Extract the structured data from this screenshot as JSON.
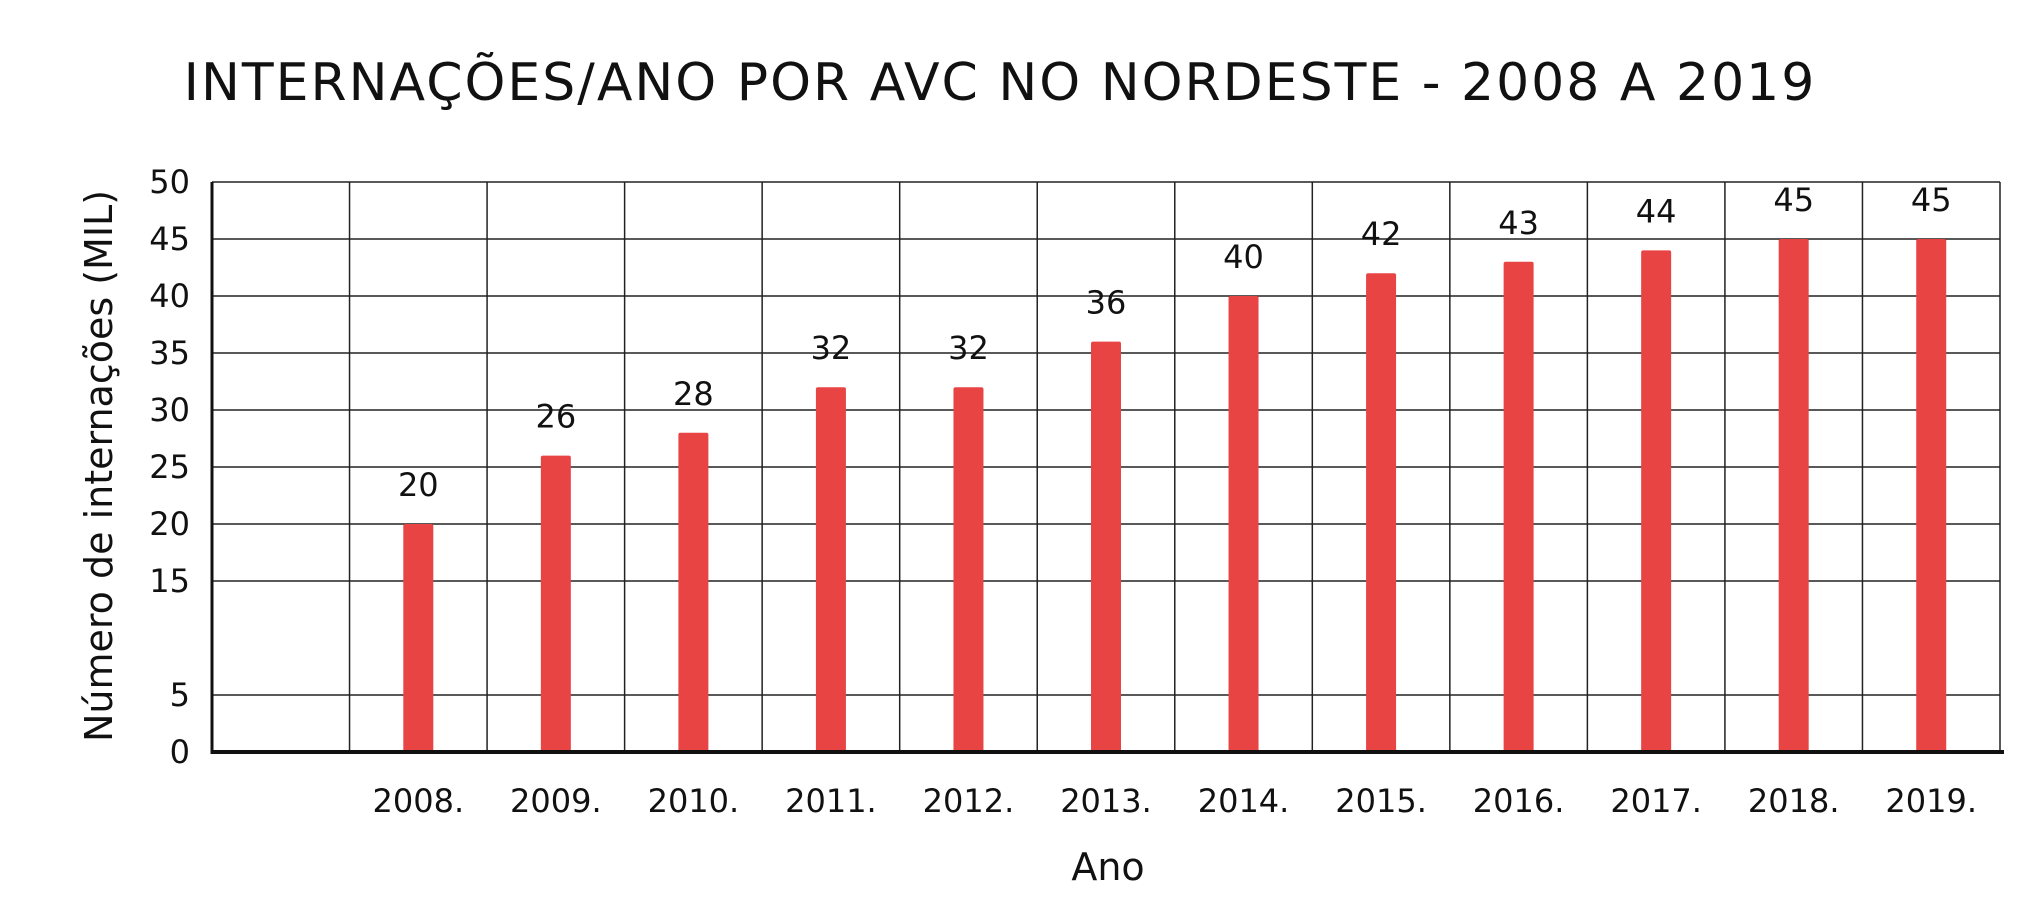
{
  "chart_data": {
    "type": "bar",
    "title": "INTERNAÇÕES/ANO POR AVC NO NORDESTE - 2008 A 2019",
    "xlabel": "Ano",
    "ylabel": "Número de internações (MIL)",
    "categories": [
      "",
      "2008.",
      "2009.",
      "2010.",
      "2011.",
      "2012.",
      "2013.",
      "2014.",
      "2015.",
      "2016.",
      "2017.",
      "2018.",
      "2019."
    ],
    "values": [
      null,
      20,
      26,
      28,
      32,
      32,
      36,
      40,
      42,
      43,
      44,
      45,
      45
    ],
    "data_labels": [
      "",
      "20",
      "26",
      "28",
      "32",
      "32",
      "36",
      "40",
      "42",
      "43",
      "44",
      "45",
      "45"
    ],
    "y_ticks": [
      "0",
      "5",
      "15",
      "20",
      "25",
      "30",
      "35",
      "40",
      "45",
      "50"
    ],
    "ylim": [
      0,
      50
    ],
    "grid": true,
    "bar_color": "#e84444"
  }
}
